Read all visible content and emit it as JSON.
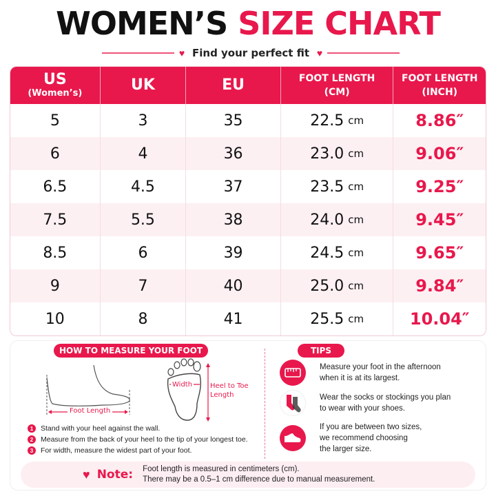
{
  "title": {
    "part1": "WOMEN’S",
    "part2": "SIZE CHART"
  },
  "subtitle": "Find your perfect fit",
  "table": {
    "headers": [
      {
        "line1": "US",
        "line2": "(Women’s)"
      },
      {
        "line1": "UK",
        "line2": ""
      },
      {
        "line1": "EU",
        "line2": ""
      },
      {
        "line1": "FOOT LENGTH",
        "line2": "(CM)"
      },
      {
        "line1": "FOOT LENGTH",
        "line2": "(INCH)"
      }
    ],
    "rows": [
      {
        "us": "5",
        "uk": "3",
        "eu": "35",
        "cm": "22.5",
        "inch": "8.86″"
      },
      {
        "us": "6",
        "uk": "4",
        "eu": "36",
        "cm": "23.0",
        "inch": "9.06″"
      },
      {
        "us": "6.5",
        "uk": "4.5",
        "eu": "37",
        "cm": "23.5",
        "inch": "9.25″"
      },
      {
        "us": "7.5",
        "uk": "5.5",
        "eu": "38",
        "cm": "24.0",
        "inch": "9.45″"
      },
      {
        "us": "8.5",
        "uk": "6",
        "eu": "39",
        "cm": "24.5",
        "inch": "9.65″"
      },
      {
        "us": "9",
        "uk": "7",
        "eu": "40",
        "cm": "25.0",
        "inch": "9.84″"
      },
      {
        "us": "10",
        "uk": "8",
        "eu": "41",
        "cm": "25.5",
        "inch": "10.04″"
      }
    ],
    "cm_unit": "cm"
  },
  "measure": {
    "heading": "HOW TO MEASURE YOUR FOOT",
    "foot_length_label": "Foot Length",
    "width_label": "Width",
    "heel_to_toe_label": "Heel to Toe Length",
    "steps": [
      {
        "num": "1",
        "text": "Stand with your heel against the wall."
      },
      {
        "num": "2",
        "text": "Measure from the back of your heel to the tip of your longest toe."
      },
      {
        "num": "3",
        "text": "For width, measure the widest part of your foot."
      }
    ]
  },
  "tips": {
    "heading": "TIPS",
    "items": [
      {
        "icon": "tape-measure-icon",
        "line1": "Measure your foot in the afternoon",
        "line2": "when it is at its largest."
      },
      {
        "icon": "socks-icon",
        "line1": "Wear the socks or stockings you plan",
        "line2": "to wear with your shoes."
      },
      {
        "icon": "shoe-icon",
        "line1": "If you are between two sizes,",
        "line2": "we recommend choosing",
        "line3": "the larger size."
      }
    ]
  },
  "note": {
    "label": "Note:",
    "line1": "Foot length is measured in centimeters (cm).",
    "line2": "There may be a 0.5–1 cm difference due to manual measurement."
  },
  "colors": {
    "accent": "#e8184c",
    "row_alt": "#fdf0f3",
    "note_bg": "#fdeef2"
  }
}
